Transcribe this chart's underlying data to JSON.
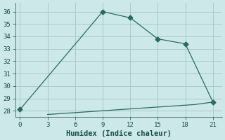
{
  "line1_x": [
    0,
    9,
    12,
    15,
    18,
    21
  ],
  "line1_y": [
    28.1,
    36.0,
    35.5,
    33.8,
    33.4,
    28.7
  ],
  "line2_x": [
    3,
    4,
    5,
    6,
    7,
    8,
    9,
    10,
    11,
    12,
    13,
    14,
    15,
    16,
    17,
    18,
    19,
    20,
    21
  ],
  "line2_y": [
    27.7,
    27.75,
    27.8,
    27.85,
    27.9,
    27.95,
    28.0,
    28.05,
    28.1,
    28.15,
    28.2,
    28.25,
    28.3,
    28.35,
    28.4,
    28.45,
    28.5,
    28.6,
    28.7
  ],
  "line_color": "#2a6b5e",
  "bg_color": "#cce8e8",
  "grid_color": "#aacaca",
  "xlabel": "Humidex (Indice chaleur)",
  "xlim": [
    -0.5,
    22
  ],
  "ylim": [
    27.5,
    36.7
  ],
  "xticks": [
    0,
    3,
    6,
    9,
    12,
    15,
    18,
    21
  ],
  "yticks": [
    28,
    29,
    30,
    31,
    32,
    33,
    34,
    35,
    36
  ],
  "font_color": "#1a4a4a",
  "marker": "D",
  "markersize": 3.5
}
